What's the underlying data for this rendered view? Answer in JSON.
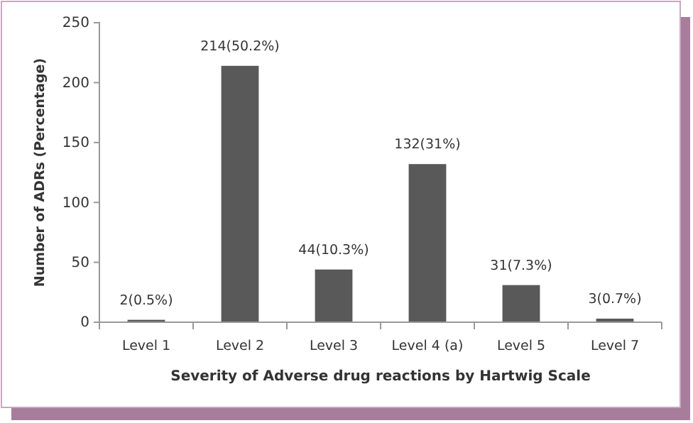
{
  "chart_data": {
    "type": "bar",
    "xlabel": "Severity of Adverse drug reactions by Hartwig Scale",
    "ylabel": "Number of ADRs (Percentage)",
    "categories": [
      "Level 1",
      "Level 2",
      "Level 3",
      "Level 4 (a)",
      "Level 5",
      "Level 7"
    ],
    "values": [
      2,
      214,
      44,
      132,
      31,
      3
    ],
    "color": "#595959",
    "value_labels": [
      "2(0.5%)",
      "214(50.2%)",
      "44(10.3%)",
      "132(31%)",
      "31(7.3%)",
      "3(0.7%)"
    ],
    "ylim": [
      0,
      250
    ],
    "yticks": [
      0,
      50,
      100,
      150,
      200,
      250
    ],
    "grid": false
  }
}
